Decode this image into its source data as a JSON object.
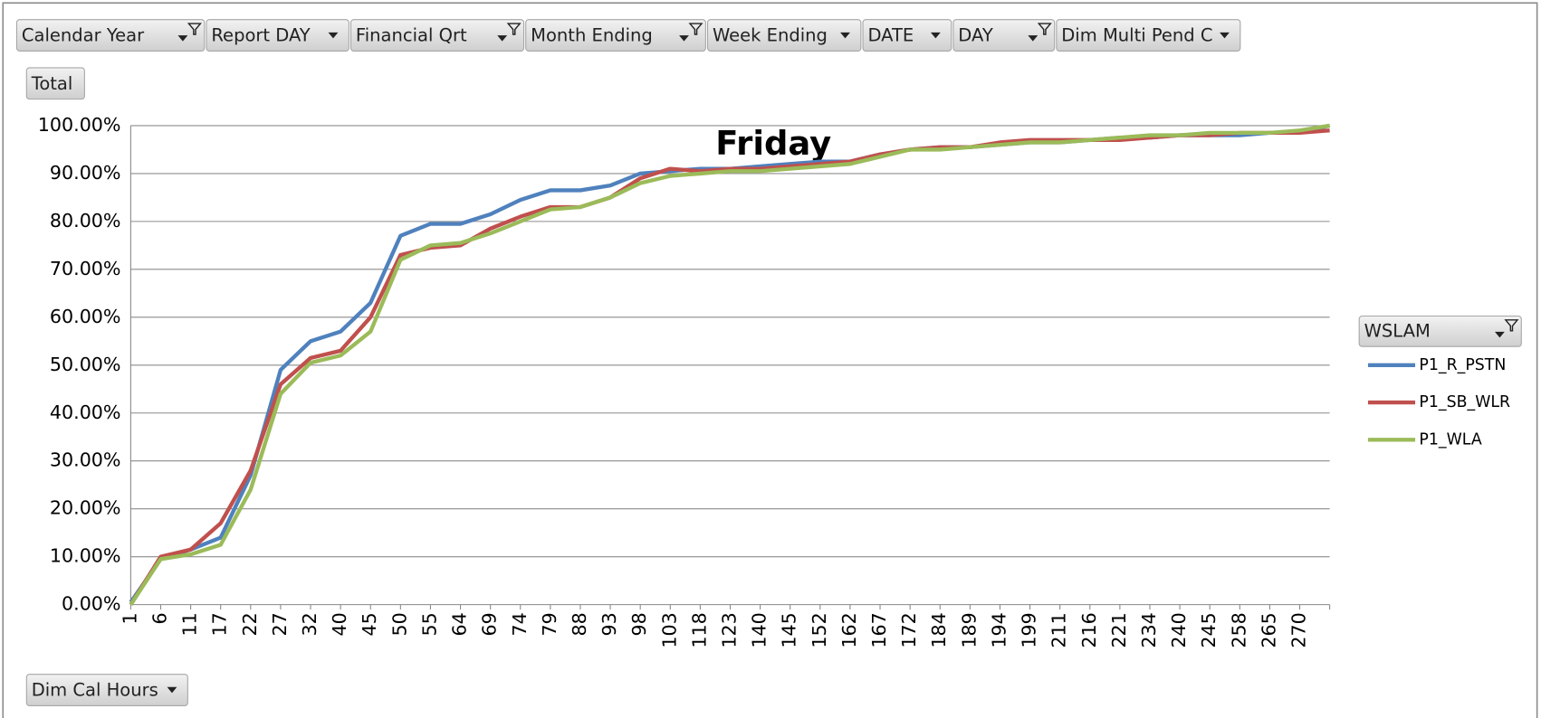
{
  "filters": [
    "Calendar Year",
    "Report DAY",
    "Financial Qrt",
    "Month Ending",
    "Week Ending",
    "DATE",
    "DAY",
    "Dim Multi Pend C"
  ],
  "row_button": "Total",
  "axis_button": "Dim Cal Hours",
  "chart_data": {
    "type": "line",
    "title": "Friday",
    "legend_title": "WSLAM",
    "legend": "right",
    "grid": true,
    "categories": [
      "1",
      "6",
      "11",
      "17",
      "22",
      "27",
      "32",
      "40",
      "45",
      "50",
      "55",
      "64",
      "69",
      "74",
      "79",
      "88",
      "93",
      "98",
      "103",
      "118",
      "123",
      "140",
      "145",
      "152",
      "162",
      "167",
      "172",
      "184",
      "189",
      "194",
      "199",
      "211",
      "216",
      "221",
      "234",
      "240",
      "245",
      "258",
      "265",
      "270",
      null
    ],
    "series": [
      {
        "name": "P1_R_PSTN",
        "color": "#4f81bd",
        "values": [
          0.5,
          9.5,
          11.5,
          14,
          27,
          49,
          55,
          57,
          63,
          77,
          79.5,
          79.5,
          81.5,
          84.5,
          86.5,
          86.5,
          87.5,
          90,
          90.5,
          91,
          91,
          91.5,
          92,
          92.5,
          92.5,
          94,
          95,
          95.5,
          95.5,
          96,
          96.5,
          96.5,
          97,
          97.5,
          97.5,
          98,
          98,
          98,
          98.5,
          98.5,
          100
        ]
      },
      {
        "name": "P1_SB_WLR",
        "color": "#c0504d",
        "values": [
          0,
          10,
          11.5,
          17,
          28,
          46,
          51.5,
          53,
          60,
          73,
          74.5,
          75,
          78.5,
          81,
          83,
          83,
          85,
          89,
          91,
          90.5,
          91,
          91,
          91.5,
          92,
          92.5,
          94,
          95,
          95.5,
          95.5,
          96.5,
          97,
          97,
          97,
          97,
          97.5,
          98,
          98,
          98.5,
          98.5,
          98.5,
          99
        ]
      },
      {
        "name": "P1_WLA",
        "color": "#9bbb59",
        "values": [
          0,
          9.5,
          10.5,
          12.5,
          24,
          44,
          50.5,
          52,
          57,
          72,
          75,
          75.5,
          77.5,
          80,
          82.5,
          83,
          85,
          88,
          89.5,
          90,
          90.5,
          90.5,
          91,
          91.5,
          92,
          93.5,
          95,
          95,
          95.5,
          96,
          96.5,
          96.5,
          97,
          97.5,
          98,
          98,
          98.5,
          98.5,
          98.5,
          99,
          100
        ]
      }
    ],
    "ylim": [
      0,
      100
    ],
    "yticks": [
      {
        "value": 0,
        "label": "0.00%"
      },
      {
        "value": 10,
        "label": "10.00%"
      },
      {
        "value": 20,
        "label": "20.00%"
      },
      {
        "value": 30,
        "label": "30.00%"
      },
      {
        "value": 40,
        "label": "40.00%"
      },
      {
        "value": 50,
        "label": "50.00%"
      },
      {
        "value": 60,
        "label": "60.00%"
      },
      {
        "value": 70,
        "label": "70.00%"
      },
      {
        "value": 80,
        "label": "80.00%"
      },
      {
        "value": 90,
        "label": "90.00%"
      },
      {
        "value": 100,
        "label": "100.00%"
      }
    ]
  }
}
